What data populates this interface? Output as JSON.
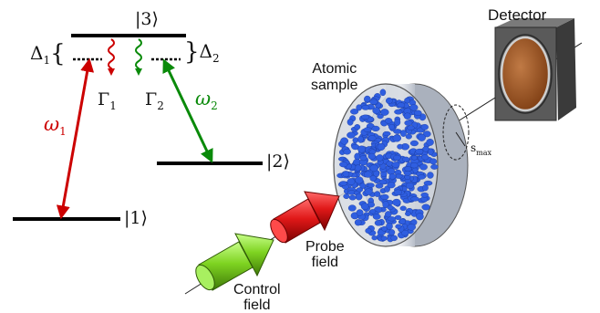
{
  "energy_levels": {
    "level3": "|3⟩",
    "level2": "|2⟩",
    "level1": "|1⟩",
    "delta1": {
      "sym": "Δ",
      "sub": "1",
      "brace": "{"
    },
    "delta2": {
      "sym": "Δ",
      "sub": "2",
      "brace": "}"
    },
    "gamma1": {
      "sym": "Γ",
      "sub": "1"
    },
    "gamma2": {
      "sym": "Γ",
      "sub": "2"
    },
    "omega1": {
      "sym": "ω",
      "sub": "1"
    },
    "omega2": {
      "sym": "ω",
      "sub": "2"
    }
  },
  "setup": {
    "detector": "Detector",
    "sample_line1": "Atomic",
    "sample_line2": "sample",
    "probe_line1": "Probe",
    "probe_line2": "field",
    "control_line1": "Control",
    "control_line2": "field",
    "smax": {
      "sym": "s",
      "sub": "max"
    }
  },
  "colors": {
    "red": "#cc0000",
    "green": "#0a8a0a",
    "atoms": "#2f5ee0",
    "cylinder": "#c9ced8",
    "detector_frame": "#5a5a5a",
    "detector_glass": "#a0521c",
    "probe_beam": "#e01818",
    "control_beam": "#7ed321"
  }
}
